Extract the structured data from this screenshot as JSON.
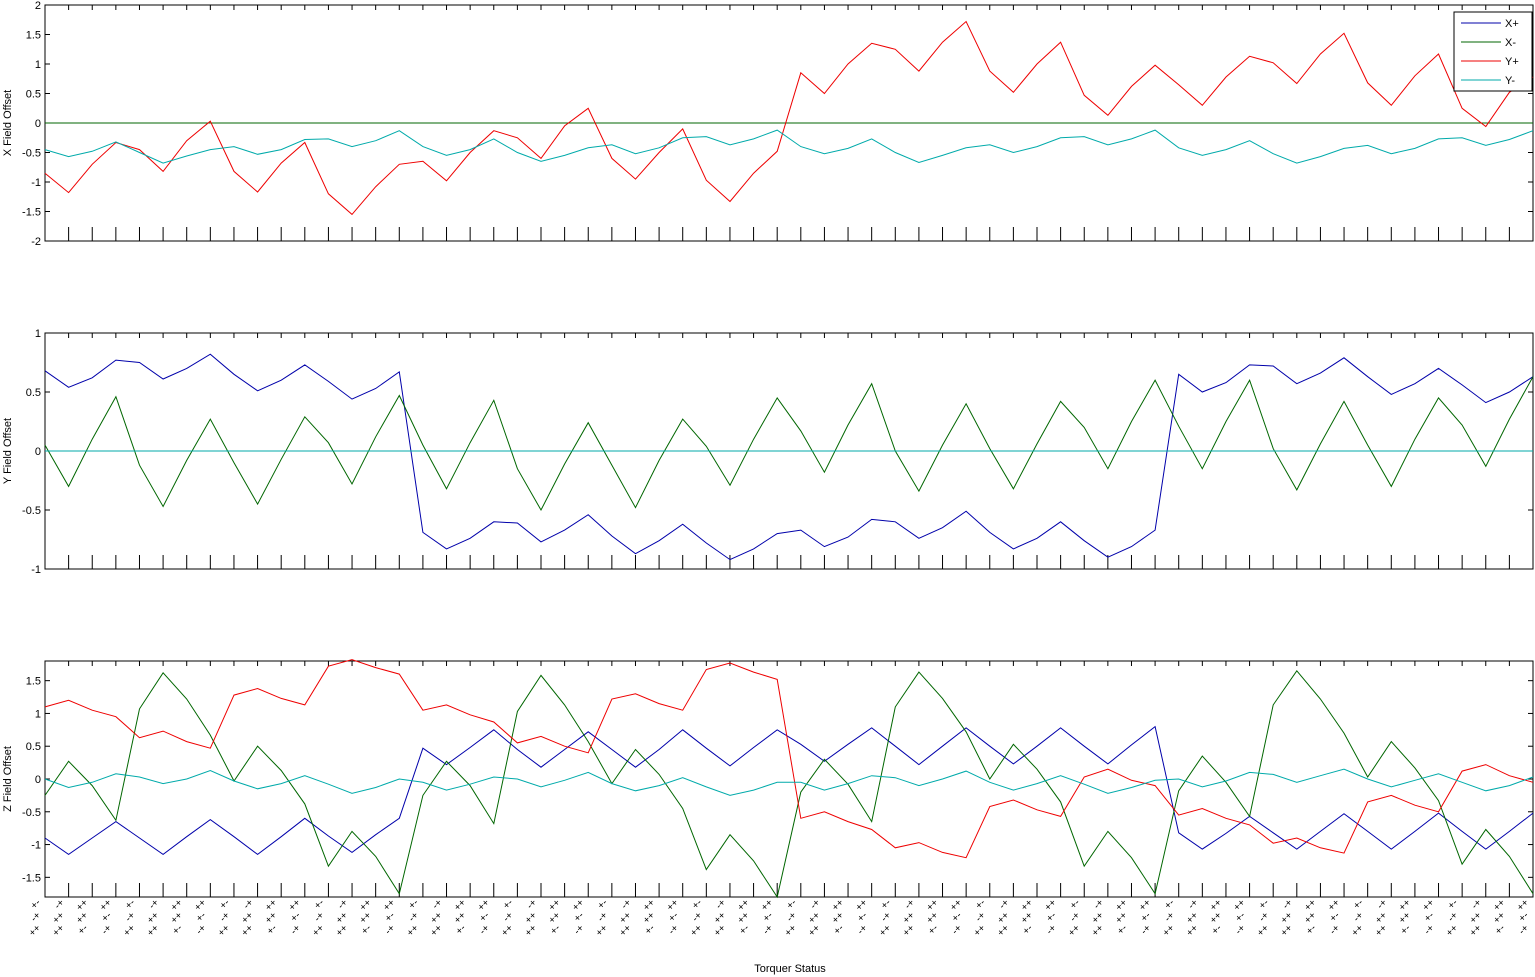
{
  "figure": {
    "xlabel": "Torquer Status"
  },
  "legend": {
    "entries": [
      {
        "label": "X+",
        "color": "#0000aa"
      },
      {
        "label": "X-",
        "color": "#006600"
      },
      {
        "label": "Y+",
        "color": "#ee0000"
      },
      {
        "label": "Y-",
        "color": "#00aaaa"
      }
    ],
    "placement": "top-right of first subplot"
  },
  "chart_data": [
    {
      "type": "line",
      "ylabel": "X Field Offset",
      "ylim": [
        -2,
        2
      ],
      "yticks": [
        "2",
        "1.5",
        "1",
        "0.5",
        "0",
        "-0.5",
        "-1",
        "-1.5",
        "-2"
      ],
      "ytick_values": [
        2,
        1.5,
        1,
        0.5,
        0,
        -0.5,
        -1,
        -1.5,
        -2
      ],
      "grid": false,
      "series": [
        {
          "name": "X+",
          "color": "#0000aa",
          "values": [
            0,
            0,
            0,
            0,
            0,
            0,
            0,
            0,
            0,
            0,
            0,
            0,
            0,
            0,
            0,
            0,
            0,
            0,
            0,
            0,
            0,
            0,
            0,
            0,
            0,
            0,
            0,
            0,
            0,
            0,
            0,
            0,
            0,
            0,
            0,
            0,
            0,
            0,
            0,
            0,
            0,
            0,
            0,
            0,
            0,
            0,
            0,
            0,
            0,
            0,
            0,
            0,
            0,
            0,
            0,
            0,
            0,
            0,
            0,
            0,
            0,
            0,
            0,
            0
          ]
        },
        {
          "name": "X-",
          "color": "#006600",
          "values": [
            0,
            0,
            0,
            0,
            0,
            0,
            0,
            0,
            0,
            0,
            0,
            0,
            0,
            0,
            0,
            0,
            0,
            0,
            0,
            0,
            0,
            0,
            0,
            0,
            0,
            0,
            0,
            0,
            0,
            0,
            0,
            0,
            0,
            0,
            0,
            0,
            0,
            0,
            0,
            0,
            0,
            0,
            0,
            0,
            0,
            0,
            0,
            0,
            0,
            0,
            0,
            0,
            0,
            0,
            0,
            0,
            0,
            0,
            0,
            0,
            0,
            0,
            0,
            0
          ]
        },
        {
          "name": "Y+",
          "color": "#ee0000",
          "values": [
            -0.85,
            -1.18,
            -0.7,
            -0.33,
            -0.45,
            -0.82,
            -0.3,
            0.03,
            -0.82,
            -1.17,
            -0.68,
            -0.33,
            -1.2,
            -1.55,
            -1.08,
            -0.7,
            -0.65,
            -0.98,
            -0.5,
            -0.13,
            -0.25,
            -0.6,
            -0.05,
            0.25,
            -0.6,
            -0.95,
            -0.5,
            -0.1,
            -0.97,
            -1.33,
            -0.85,
            -0.48,
            0.85,
            0.5,
            1.0,
            1.35,
            1.25,
            0.88,
            1.37,
            1.72,
            0.88,
            0.52,
            1.0,
            1.37,
            0.47,
            0.13,
            0.62,
            0.98,
            0.65,
            0.3,
            0.78,
            1.13,
            1.02,
            0.67,
            1.17,
            1.52,
            0.68,
            0.3,
            0.8,
            1.17,
            0.25,
            -0.06,
            0.52,
            0.78
          ]
        },
        {
          "name": "Y-",
          "color": "#00aaaa",
          "values": [
            -0.45,
            -0.57,
            -0.48,
            -0.32,
            -0.5,
            -0.68,
            -0.56,
            -0.45,
            -0.4,
            -0.53,
            -0.45,
            -0.28,
            -0.27,
            -0.4,
            -0.3,
            -0.13,
            -0.4,
            -0.55,
            -0.45,
            -0.27,
            -0.5,
            -0.65,
            -0.55,
            -0.42,
            -0.37,
            -0.52,
            -0.42,
            -0.25,
            -0.23,
            -0.37,
            -0.27,
            -0.12,
            -0.4,
            -0.52,
            -0.43,
            -0.27,
            -0.5,
            -0.67,
            -0.55,
            -0.42,
            -0.37,
            -0.5,
            -0.4,
            -0.25,
            -0.23,
            -0.37,
            -0.27,
            -0.12,
            -0.42,
            -0.55,
            -0.45,
            -0.3,
            -0.52,
            -0.68,
            -0.57,
            -0.43,
            -0.38,
            -0.52,
            -0.43,
            -0.27,
            -0.25,
            -0.38,
            -0.28,
            -0.13
          ]
        }
      ]
    },
    {
      "type": "line",
      "ylabel": "Y Field Offset",
      "ylim": [
        -1,
        1
      ],
      "yticks": [
        "1",
        "0.5",
        "0",
        "-0.5",
        "-1"
      ],
      "ytick_values": [
        1,
        0.5,
        0,
        -0.5,
        -1
      ],
      "grid": false,
      "series": [
        {
          "name": "X+",
          "color": "#0000aa",
          "values": [
            0.68,
            0.54,
            0.62,
            0.77,
            0.75,
            0.61,
            0.7,
            0.82,
            0.65,
            0.51,
            0.6,
            0.73,
            0.59,
            0.44,
            0.53,
            0.67,
            -0.69,
            -0.83,
            -0.74,
            -0.6,
            -0.61,
            -0.77,
            -0.67,
            -0.54,
            -0.72,
            -0.87,
            -0.76,
            -0.62,
            -0.78,
            -0.92,
            -0.83,
            -0.7,
            -0.67,
            -0.81,
            -0.73,
            -0.58,
            -0.6,
            -0.74,
            -0.65,
            -0.51,
            -0.69,
            -0.83,
            -0.74,
            -0.6,
            -0.76,
            -0.9,
            -0.81,
            -0.67,
            0.65,
            0.5,
            0.58,
            0.73,
            0.72,
            0.57,
            0.66,
            0.79,
            0.63,
            0.48,
            0.57,
            0.7,
            0.56,
            0.41,
            0.5,
            0.63
          ]
        },
        {
          "name": "X-",
          "color": "#006600",
          "values": [
            0.05,
            -0.3,
            0.1,
            0.46,
            -0.12,
            -0.47,
            -0.08,
            0.27,
            -0.1,
            -0.45,
            -0.07,
            0.29,
            0.07,
            -0.28,
            0.12,
            0.47,
            0.05,
            -0.32,
            0.07,
            0.43,
            -0.15,
            -0.5,
            -0.11,
            0.24,
            -0.12,
            -0.48,
            -0.08,
            0.27,
            0.04,
            -0.29,
            0.1,
            0.45,
            0.17,
            -0.18,
            0.22,
            0.57,
            0.0,
            -0.34,
            0.05,
            0.4,
            0.02,
            -0.32,
            0.06,
            0.42,
            0.2,
            -0.15,
            0.25,
            0.6,
            0.21,
            -0.15,
            0.25,
            0.6,
            0.02,
            -0.33,
            0.06,
            0.42,
            0.05,
            -0.3,
            0.1,
            0.45,
            0.22,
            -0.13,
            0.27,
            0.63
          ]
        },
        {
          "name": "Y+",
          "color": "#ee0000",
          "values": [
            0,
            0,
            0,
            0,
            0,
            0,
            0,
            0,
            0,
            0,
            0,
            0,
            0,
            0,
            0,
            0,
            0,
            0,
            0,
            0,
            0,
            0,
            0,
            0,
            0,
            0,
            0,
            0,
            0,
            0,
            0,
            0,
            0,
            0,
            0,
            0,
            0,
            0,
            0,
            0,
            0,
            0,
            0,
            0,
            0,
            0,
            0,
            0,
            0,
            0,
            0,
            0,
            0,
            0,
            0,
            0,
            0,
            0,
            0,
            0,
            0,
            0,
            0,
            0
          ]
        },
        {
          "name": "Y-",
          "color": "#00aaaa",
          "values": [
            0,
            0,
            0,
            0,
            0,
            0,
            0,
            0,
            0,
            0,
            0,
            0,
            0,
            0,
            0,
            0,
            0,
            0,
            0,
            0,
            0,
            0,
            0,
            0,
            0,
            0,
            0,
            0,
            0,
            0,
            0,
            0,
            0,
            0,
            0,
            0,
            0,
            0,
            0,
            0,
            0,
            0,
            0,
            0,
            0,
            0,
            0,
            0,
            0,
            0,
            0,
            0,
            0,
            0,
            0,
            0,
            0,
            0,
            0,
            0,
            0,
            0,
            0,
            0
          ]
        }
      ]
    },
    {
      "type": "line",
      "ylabel": "Z Field Offset",
      "ylim": [
        -1.8,
        1.8
      ],
      "yticks": [
        "1.5",
        "1",
        "0.5",
        "0",
        "-0.5",
        "-1",
        "-1.5"
      ],
      "ytick_values": [
        1.5,
        1,
        0.5,
        0,
        -0.5,
        -1,
        -1.5
      ],
      "grid": false,
      "series": [
        {
          "name": "X+",
          "color": "#0000aa",
          "values": [
            -0.9,
            -1.15,
            -0.9,
            -0.65,
            -0.9,
            -1.15,
            -0.88,
            -0.62,
            -0.88,
            -1.15,
            -0.88,
            -0.6,
            -0.87,
            -1.12,
            -0.85,
            -0.6,
            0.47,
            0.22,
            0.48,
            0.75,
            0.45,
            0.18,
            0.45,
            0.72,
            0.45,
            0.18,
            0.45,
            0.75,
            0.47,
            0.2,
            0.48,
            0.75,
            0.53,
            0.27,
            0.53,
            0.78,
            0.5,
            0.22,
            0.5,
            0.78,
            0.5,
            0.23,
            0.5,
            0.78,
            0.5,
            0.23,
            0.52,
            0.8,
            -0.82,
            -1.07,
            -0.83,
            -0.57,
            -0.82,
            -1.07,
            -0.8,
            -0.53,
            -0.8,
            -1.07,
            -0.8,
            -0.52,
            -0.8,
            -1.07,
            -0.8,
            -0.52
          ]
        },
        {
          "name": "X-",
          "color": "#006600",
          "values": [
            -0.25,
            0.27,
            -0.1,
            -0.63,
            1.07,
            1.62,
            1.22,
            0.67,
            -0.03,
            0.5,
            0.13,
            -0.38,
            -1.33,
            -0.8,
            -1.18,
            -1.75,
            -0.25,
            0.27,
            -0.1,
            -0.68,
            1.03,
            1.58,
            1.13,
            0.57,
            -0.07,
            0.45,
            0.07,
            -0.45,
            -1.38,
            -0.85,
            -1.25,
            -1.8,
            -0.2,
            0.3,
            -0.08,
            -0.65,
            1.1,
            1.63,
            1.23,
            0.72,
            0.0,
            0.53,
            0.15,
            -0.35,
            -1.33,
            -0.8,
            -1.2,
            -1.75,
            -0.18,
            0.35,
            -0.05,
            -0.57,
            1.13,
            1.65,
            1.22,
            0.7,
            0.03,
            0.57,
            0.17,
            -0.33,
            -1.3,
            -0.77,
            -1.18,
            -1.75
          ]
        },
        {
          "name": "Y+",
          "color": "#ee0000",
          "values": [
            1.1,
            1.2,
            1.05,
            0.95,
            0.63,
            0.73,
            0.57,
            0.47,
            1.28,
            1.38,
            1.23,
            1.13,
            1.72,
            1.82,
            1.7,
            1.6,
            1.05,
            1.13,
            0.98,
            0.87,
            0.55,
            0.65,
            0.5,
            0.4,
            1.22,
            1.3,
            1.15,
            1.05,
            1.67,
            1.77,
            1.63,
            1.52,
            -0.6,
            -0.5,
            -0.65,
            -0.77,
            -1.05,
            -0.97,
            -1.12,
            -1.2,
            -0.42,
            -0.32,
            -0.47,
            -0.57,
            0.03,
            0.15,
            -0.02,
            -0.1,
            -0.55,
            -0.45,
            -0.6,
            -0.7,
            -0.98,
            -0.9,
            -1.05,
            -1.13,
            -0.35,
            -0.25,
            -0.4,
            -0.5,
            0.12,
            0.22,
            0.05,
            -0.05
          ]
        },
        {
          "name": "Y-",
          "color": "#00aaaa",
          "values": [
            0.0,
            -0.13,
            -0.05,
            0.08,
            0.03,
            -0.07,
            0.0,
            0.13,
            -0.03,
            -0.15,
            -0.07,
            0.05,
            -0.08,
            -0.22,
            -0.13,
            0.0,
            -0.05,
            -0.17,
            -0.08,
            0.03,
            0.0,
            -0.12,
            -0.02,
            0.1,
            -0.07,
            -0.18,
            -0.1,
            0.02,
            -0.12,
            -0.25,
            -0.17,
            -0.05,
            -0.05,
            -0.17,
            -0.07,
            0.05,
            0.02,
            -0.1,
            0.0,
            0.12,
            -0.05,
            -0.17,
            -0.07,
            0.05,
            -0.08,
            -0.22,
            -0.13,
            -0.02,
            0.0,
            -0.12,
            -0.03,
            0.1,
            0.07,
            -0.05,
            0.05,
            0.15,
            0.0,
            -0.12,
            -0.02,
            0.08,
            -0.05,
            -0.18,
            -0.1,
            0.03
          ]
        }
      ]
    }
  ]
}
